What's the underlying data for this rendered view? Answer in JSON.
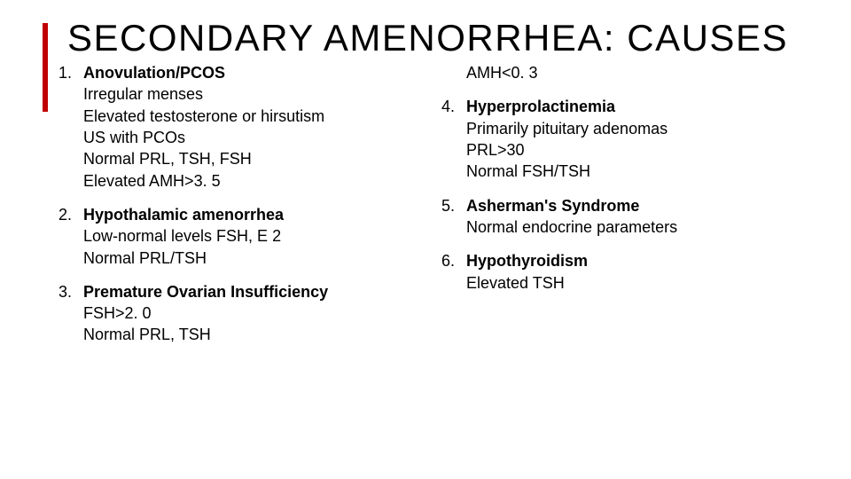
{
  "title": "SECONDARY AMENORRHEA: CAUSES",
  "accent_color": "#c00000",
  "text_color": "#000000",
  "background_color": "#ffffff",
  "title_fontsize": 42,
  "body_fontsize": 18,
  "left": {
    "items": [
      {
        "num": "1.",
        "lead": "Anovulation/PCOS",
        "subs": [
          "Irregular menses",
          "Elevated testosterone or hirsutism",
          "US with PCOs",
          "Normal PRL, TSH, FSH",
          "Elevated AMH>3. 5"
        ]
      },
      {
        "num": "2.",
        "lead": "Hypothalamic amenorrhea",
        "subs": [
          "Low-normal levels FSH, E 2",
          "Normal PRL/TSH"
        ]
      },
      {
        "num": "3.",
        "lead": "Premature Ovarian Insufficiency",
        "subs": [
          "FSH>2. 0",
          "Normal PRL, TSH"
        ]
      }
    ]
  },
  "right": {
    "carryover": "AMH<0. 3",
    "items": [
      {
        "num": "4.",
        "lead": "Hyperprolactinemia",
        "subs": [
          "Primarily pituitary adenomas",
          "PRL>30",
          "Normal FSH/TSH"
        ]
      },
      {
        "num": "5.",
        "lead": "Asherman's Syndrome",
        "subs": [
          "Normal endocrine parameters"
        ]
      },
      {
        "num": "6.",
        "lead": "Hypothyroidism",
        "subs": [
          "Elevated TSH"
        ]
      }
    ]
  }
}
